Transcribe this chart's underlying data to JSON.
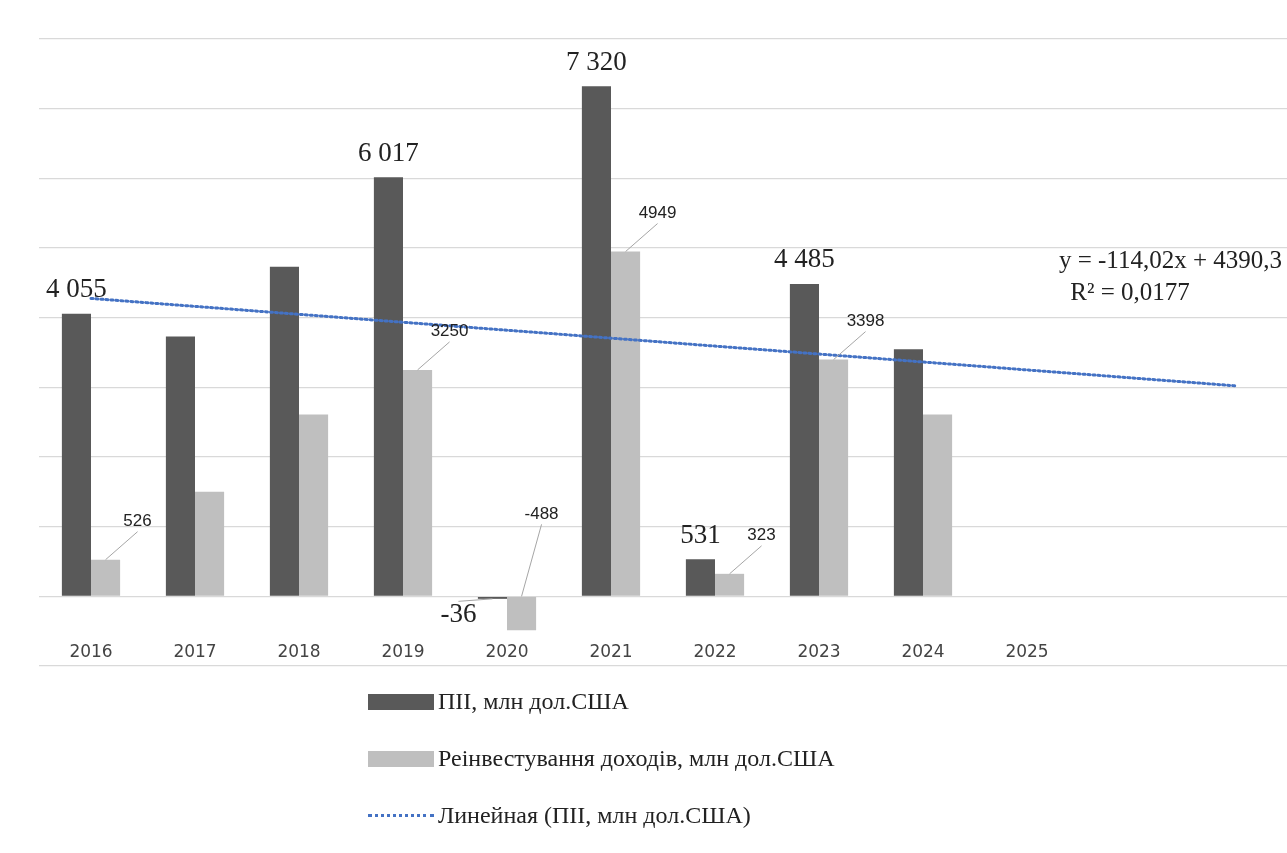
{
  "chart_data": {
    "type": "bar",
    "categories": [
      "2016",
      "2017",
      "2018",
      "2019",
      "2020",
      "2021",
      "2022",
      "2023",
      "2024",
      "2025",
      null,
      null
    ],
    "series": [
      {
        "name": "ПІІ, млн дол.США",
        "color": "#595959",
        "values": [
          4055,
          3730,
          4730,
          6017,
          -36,
          7320,
          531,
          4485,
          3545,
          null,
          null,
          null
        ],
        "value_labels": [
          "4 055",
          null,
          null,
          "6 017",
          "-36",
          "7 320",
          "531",
          "4 485",
          null,
          null,
          null,
          null
        ]
      },
      {
        "name": "Реінвестування доходів, млн дол.США",
        "color": "#bfbfbf",
        "values": [
          526,
          1500,
          2610,
          3250,
          -488,
          4949,
          323,
          3398,
          2610,
          null,
          null,
          null
        ],
        "value_labels": [
          "526",
          null,
          null,
          "3250",
          "-488",
          "4949",
          "323",
          "3398",
          null,
          null,
          null,
          null
        ]
      },
      {
        "name": "Линейная (ПІІ, млн дол.США)",
        "type": "line",
        "color": "#4472c4",
        "line_style": "dotted",
        "marker": "none",
        "values": [
          4276,
          4162,
          4048,
          3934,
          3820,
          3706,
          3592,
          3478,
          3364,
          3250,
          3136,
          3022
        ]
      }
    ],
    "ylim": [
      -1000,
      8000
    ],
    "yticks": [
      {
        "value": -1000,
        "label": null
      },
      {
        "value": 0,
        "label": null
      },
      {
        "value": 1000,
        "label": null
      },
      {
        "value": 2000,
        "label": null
      },
      {
        "value": 3000,
        "label": null
      },
      {
        "value": 4000,
        "label": null
      },
      {
        "value": 5000,
        "label": null
      },
      {
        "value": 6000,
        "label": null
      },
      {
        "value": 7000,
        "label": null
      },
      {
        "value": 8000,
        "label": null
      }
    ],
    "tick_labels": "x",
    "grid": "y",
    "legend": "bottom",
    "annotations": [
      "y = -114,02x + 4390,3",
      "R² = 0,0177"
    ]
  }
}
